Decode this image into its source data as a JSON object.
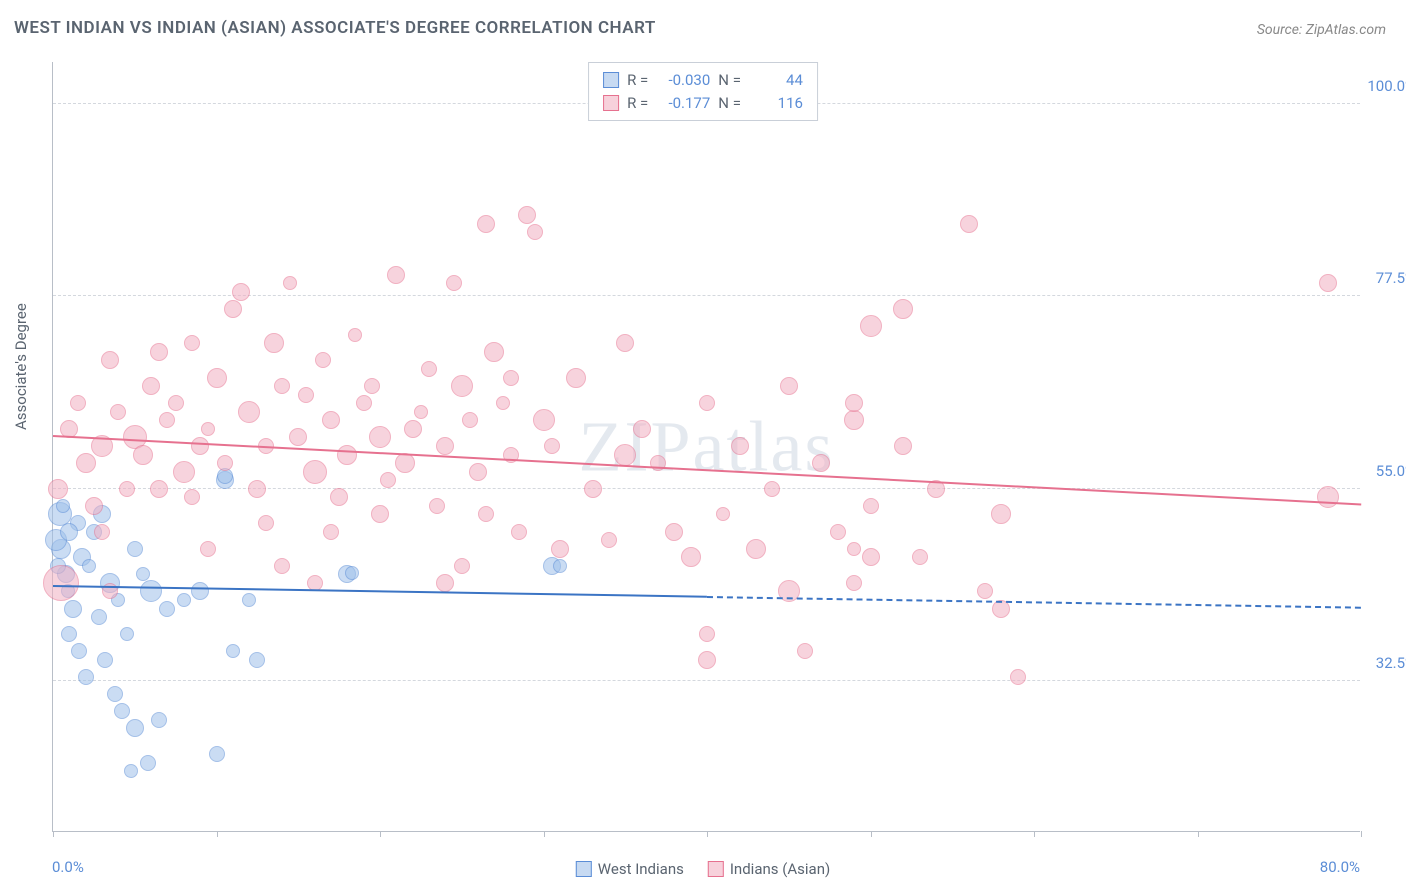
{
  "chart": {
    "type": "scatter",
    "title": "WEST INDIAN VS INDIAN (ASIAN) ASSOCIATE'S DEGREE CORRELATION CHART",
    "source_label": "Source:",
    "source_name": "ZipAtlas.com",
    "ylabel": "Associate's Degree",
    "watermark": "ZIPatlas",
    "background_color": "#ffffff",
    "axis_color": "#b8bec7",
    "grid_color": "#d4d8de",
    "label_color": "#5a6470",
    "value_color": "#5b8dd6",
    "title_fontsize": 17,
    "label_fontsize": 15,
    "xlim": [
      0,
      80
    ],
    "ylim": [
      15,
      105
    ],
    "x_ticks": [
      0,
      10,
      20,
      30,
      40,
      50,
      60,
      70,
      80
    ],
    "x_axis_labels": {
      "left": "0.0%",
      "right": "80.0%"
    },
    "y_gridlines": [
      {
        "value": 32.5,
        "label": "32.5%"
      },
      {
        "value": 55.0,
        "label": "55.0%"
      },
      {
        "value": 77.5,
        "label": "77.5%"
      },
      {
        "value": 100.0,
        "label": "100.0%"
      }
    ],
    "series": [
      {
        "name": "West Indians",
        "fill_color": "#9fc1ea",
        "fill_opacity": 0.55,
        "stroke_color": "#5b8dd6",
        "trend": {
          "y_left": 43.5,
          "y_right": 41.0,
          "solid_until_x": 40,
          "color": "#3b74c4"
        },
        "points": [
          {
            "x": 0.5,
            "y": 48,
            "r": 10
          },
          {
            "x": 0.8,
            "y": 45,
            "r": 9
          },
          {
            "x": 0.4,
            "y": 52,
            "r": 12
          },
          {
            "x": 0.2,
            "y": 49,
            "r": 11
          },
          {
            "x": 1.5,
            "y": 51,
            "r": 8
          },
          {
            "x": 1.8,
            "y": 47,
            "r": 9
          },
          {
            "x": 0.9,
            "y": 43,
            "r": 7
          },
          {
            "x": 2.5,
            "y": 50,
            "r": 8
          },
          {
            "x": 1.2,
            "y": 41,
            "r": 9
          },
          {
            "x": 3.0,
            "y": 52,
            "r": 9
          },
          {
            "x": 2.2,
            "y": 46,
            "r": 7
          },
          {
            "x": 3.5,
            "y": 44,
            "r": 10
          },
          {
            "x": 1.0,
            "y": 38,
            "r": 8
          },
          {
            "x": 2.8,
            "y": 40,
            "r": 8
          },
          {
            "x": 4.0,
            "y": 42,
            "r": 7
          },
          {
            "x": 1.6,
            "y": 36,
            "r": 8
          },
          {
            "x": 5.0,
            "y": 48,
            "r": 8
          },
          {
            "x": 4.5,
            "y": 38,
            "r": 7
          },
          {
            "x": 3.2,
            "y": 35,
            "r": 8
          },
          {
            "x": 6.0,
            "y": 43,
            "r": 11
          },
          {
            "x": 2.0,
            "y": 33,
            "r": 8
          },
          {
            "x": 5.5,
            "y": 45,
            "r": 7
          },
          {
            "x": 7.0,
            "y": 41,
            "r": 8
          },
          {
            "x": 3.8,
            "y": 31,
            "r": 8
          },
          {
            "x": 4.2,
            "y": 29,
            "r": 8
          },
          {
            "x": 8.0,
            "y": 42,
            "r": 7
          },
          {
            "x": 5.0,
            "y": 27,
            "r": 9
          },
          {
            "x": 6.5,
            "y": 28,
            "r": 8
          },
          {
            "x": 5.8,
            "y": 23,
            "r": 8
          },
          {
            "x": 10.0,
            "y": 24,
            "r": 8
          },
          {
            "x": 4.8,
            "y": 22,
            "r": 7
          },
          {
            "x": 10.5,
            "y": 56,
            "r": 9
          },
          {
            "x": 10.5,
            "y": 56.5,
            "r": 8
          },
          {
            "x": 12.0,
            "y": 42,
            "r": 7
          },
          {
            "x": 11.0,
            "y": 36,
            "r": 7
          },
          {
            "x": 9.0,
            "y": 43,
            "r": 9
          },
          {
            "x": 18.0,
            "y": 45,
            "r": 9
          },
          {
            "x": 18.3,
            "y": 45.2,
            "r": 7
          },
          {
            "x": 30.5,
            "y": 46,
            "r": 9
          },
          {
            "x": 31.0,
            "y": 46,
            "r": 7
          },
          {
            "x": 0.3,
            "y": 46,
            "r": 8
          },
          {
            "x": 1.0,
            "y": 50,
            "r": 9
          },
          {
            "x": 0.6,
            "y": 53,
            "r": 7
          },
          {
            "x": 12.5,
            "y": 35,
            "r": 8
          }
        ]
      },
      {
        "name": "Indians (Asian)",
        "fill_color": "#f2b0c3",
        "fill_opacity": 0.55,
        "stroke_color": "#e6718f",
        "trend": {
          "y_left": 61.0,
          "y_right": 53.0,
          "solid_until_x": 80,
          "color": "#e6718f"
        },
        "points": [
          {
            "x": 0.5,
            "y": 44,
            "r": 18
          },
          {
            "x": 0.3,
            "y": 55,
            "r": 10
          },
          {
            "x": 1.0,
            "y": 62,
            "r": 9
          },
          {
            "x": 2.0,
            "y": 58,
            "r": 10
          },
          {
            "x": 1.5,
            "y": 65,
            "r": 8
          },
          {
            "x": 3.0,
            "y": 60,
            "r": 11
          },
          {
            "x": 2.5,
            "y": 53,
            "r": 9
          },
          {
            "x": 4.0,
            "y": 64,
            "r": 8
          },
          {
            "x": 3.5,
            "y": 70,
            "r": 9
          },
          {
            "x": 5.0,
            "y": 61,
            "r": 12
          },
          {
            "x": 4.5,
            "y": 55,
            "r": 8
          },
          {
            "x": 6.0,
            "y": 67,
            "r": 9
          },
          {
            "x": 5.5,
            "y": 59,
            "r": 10
          },
          {
            "x": 7.0,
            "y": 63,
            "r": 8
          },
          {
            "x": 6.5,
            "y": 71,
            "r": 9
          },
          {
            "x": 8.0,
            "y": 57,
            "r": 11
          },
          {
            "x": 7.5,
            "y": 65,
            "r": 8
          },
          {
            "x": 9.0,
            "y": 60,
            "r": 9
          },
          {
            "x": 8.5,
            "y": 54,
            "r": 8
          },
          {
            "x": 10.0,
            "y": 68,
            "r": 10
          },
          {
            "x": 9.5,
            "y": 62,
            "r": 7
          },
          {
            "x": 11.0,
            "y": 76,
            "r": 9
          },
          {
            "x": 10.5,
            "y": 58,
            "r": 8
          },
          {
            "x": 12.0,
            "y": 64,
            "r": 11
          },
          {
            "x": 11.5,
            "y": 78,
            "r": 9
          },
          {
            "x": 13.0,
            "y": 60,
            "r": 8
          },
          {
            "x": 12.5,
            "y": 55,
            "r": 9
          },
          {
            "x": 14.0,
            "y": 67,
            "r": 8
          },
          {
            "x": 13.5,
            "y": 72,
            "r": 10
          },
          {
            "x": 15.0,
            "y": 61,
            "r": 9
          },
          {
            "x": 14.5,
            "y": 79,
            "r": 7
          },
          {
            "x": 16.0,
            "y": 57,
            "r": 12
          },
          {
            "x": 15.5,
            "y": 66,
            "r": 8
          },
          {
            "x": 17.0,
            "y": 63,
            "r": 9
          },
          {
            "x": 16.5,
            "y": 70,
            "r": 8
          },
          {
            "x": 18.0,
            "y": 59,
            "r": 10
          },
          {
            "x": 17.5,
            "y": 54,
            "r": 9
          },
          {
            "x": 19.0,
            "y": 65,
            "r": 8
          },
          {
            "x": 18.5,
            "y": 73,
            "r": 7
          },
          {
            "x": 20.0,
            "y": 61,
            "r": 11
          },
          {
            "x": 19.5,
            "y": 67,
            "r": 8
          },
          {
            "x": 21.0,
            "y": 80,
            "r": 9
          },
          {
            "x": 20.5,
            "y": 56,
            "r": 8
          },
          {
            "x": 22.0,
            "y": 62,
            "r": 9
          },
          {
            "x": 21.5,
            "y": 58,
            "r": 10
          },
          {
            "x": 23.0,
            "y": 69,
            "r": 8
          },
          {
            "x": 22.5,
            "y": 64,
            "r": 7
          },
          {
            "x": 24.0,
            "y": 60,
            "r": 9
          },
          {
            "x": 23.5,
            "y": 53,
            "r": 8
          },
          {
            "x": 25.0,
            "y": 67,
            "r": 11
          },
          {
            "x": 24.5,
            "y": 79,
            "r": 8
          },
          {
            "x": 26.0,
            "y": 57,
            "r": 9
          },
          {
            "x": 25.5,
            "y": 63,
            "r": 8
          },
          {
            "x": 27.0,
            "y": 71,
            "r": 10
          },
          {
            "x": 26.5,
            "y": 86,
            "r": 9
          },
          {
            "x": 28.0,
            "y": 59,
            "r": 8
          },
          {
            "x": 27.5,
            "y": 65,
            "r": 7
          },
          {
            "x": 29.0,
            "y": 87,
            "r": 9
          },
          {
            "x": 28.5,
            "y": 50,
            "r": 8
          },
          {
            "x": 30.0,
            "y": 63,
            "r": 11
          },
          {
            "x": 29.5,
            "y": 85,
            "r": 8
          },
          {
            "x": 31.0,
            "y": 48,
            "r": 9
          },
          {
            "x": 30.5,
            "y": 60,
            "r": 8
          },
          {
            "x": 32.0,
            "y": 68,
            "r": 10
          },
          {
            "x": 33.0,
            "y": 55,
            "r": 9
          },
          {
            "x": 34.0,
            "y": 49,
            "r": 8
          },
          {
            "x": 35.0,
            "y": 72,
            "r": 9
          },
          {
            "x": 35.0,
            "y": 59,
            "r": 11
          },
          {
            "x": 37.0,
            "y": 58,
            "r": 8
          },
          {
            "x": 38.0,
            "y": 50,
            "r": 9
          },
          {
            "x": 39.0,
            "y": 47,
            "r": 10
          },
          {
            "x": 40.0,
            "y": 65,
            "r": 8
          },
          {
            "x": 40.0,
            "y": 35,
            "r": 9
          },
          {
            "x": 40.0,
            "y": 38,
            "r": 8
          },
          {
            "x": 41.0,
            "y": 52,
            "r": 7
          },
          {
            "x": 42.0,
            "y": 60,
            "r": 9
          },
          {
            "x": 43.0,
            "y": 48,
            "r": 10
          },
          {
            "x": 44.0,
            "y": 55,
            "r": 8
          },
          {
            "x": 45.0,
            "y": 67,
            "r": 9
          },
          {
            "x": 45.0,
            "y": 43,
            "r": 11
          },
          {
            "x": 46.0,
            "y": 36,
            "r": 8
          },
          {
            "x": 47.0,
            "y": 58,
            "r": 9
          },
          {
            "x": 48.0,
            "y": 50,
            "r": 8
          },
          {
            "x": 49.0,
            "y": 63,
            "r": 10
          },
          {
            "x": 49.0,
            "y": 65,
            "r": 9
          },
          {
            "x": 49.0,
            "y": 44,
            "r": 8
          },
          {
            "x": 49.0,
            "y": 48,
            "r": 7
          },
          {
            "x": 50.0,
            "y": 47,
            "r": 9
          },
          {
            "x": 50.0,
            "y": 74,
            "r": 11
          },
          {
            "x": 50.0,
            "y": 53,
            "r": 8
          },
          {
            "x": 52.0,
            "y": 60,
            "r": 9
          },
          {
            "x": 52.0,
            "y": 76,
            "r": 10
          },
          {
            "x": 53.0,
            "y": 47,
            "r": 8
          },
          {
            "x": 54.0,
            "y": 55,
            "r": 9
          },
          {
            "x": 56.0,
            "y": 86,
            "r": 9
          },
          {
            "x": 57.0,
            "y": 43,
            "r": 8
          },
          {
            "x": 58.0,
            "y": 52,
            "r": 10
          },
          {
            "x": 58.0,
            "y": 41,
            "r": 9
          },
          {
            "x": 59.0,
            "y": 33,
            "r": 8
          },
          {
            "x": 78.0,
            "y": 54,
            "r": 11
          },
          {
            "x": 78.0,
            "y": 79,
            "r": 9
          },
          {
            "x": 3.0,
            "y": 50,
            "r": 8
          },
          {
            "x": 6.5,
            "y": 55,
            "r": 9
          },
          {
            "x": 14.0,
            "y": 46,
            "r": 8
          },
          {
            "x": 16.0,
            "y": 44,
            "r": 8
          },
          {
            "x": 20.0,
            "y": 52,
            "r": 9
          },
          {
            "x": 25.0,
            "y": 46,
            "r": 8
          },
          {
            "x": 28.0,
            "y": 68,
            "r": 8
          },
          {
            "x": 36.0,
            "y": 62,
            "r": 9
          },
          {
            "x": 3.5,
            "y": 43,
            "r": 8
          },
          {
            "x": 8.5,
            "y": 72,
            "r": 8
          },
          {
            "x": 17.0,
            "y": 50,
            "r": 8
          },
          {
            "x": 24.0,
            "y": 44,
            "r": 9
          },
          {
            "x": 26.5,
            "y": 52,
            "r": 8
          },
          {
            "x": 9.5,
            "y": 48,
            "r": 8
          },
          {
            "x": 13.0,
            "y": 51,
            "r": 8
          }
        ]
      }
    ],
    "stats": [
      {
        "swatch_fill": "#c7daf2",
        "swatch_border": "#5b8dd6",
        "r_label": "R =",
        "r_value": "-0.030",
        "n_label": "N =",
        "n_value": "44"
      },
      {
        "swatch_fill": "#f7d1db",
        "swatch_border": "#e6718f",
        "r_label": "R =",
        "r_value": "-0.177",
        "n_label": "N =",
        "n_value": "116"
      }
    ],
    "bottom_legend": [
      {
        "label": "West Indians",
        "fill": "#c7daf2",
        "border": "#5b8dd6"
      },
      {
        "label": "Indians (Asian)",
        "fill": "#f7d1db",
        "border": "#e6718f"
      }
    ]
  }
}
